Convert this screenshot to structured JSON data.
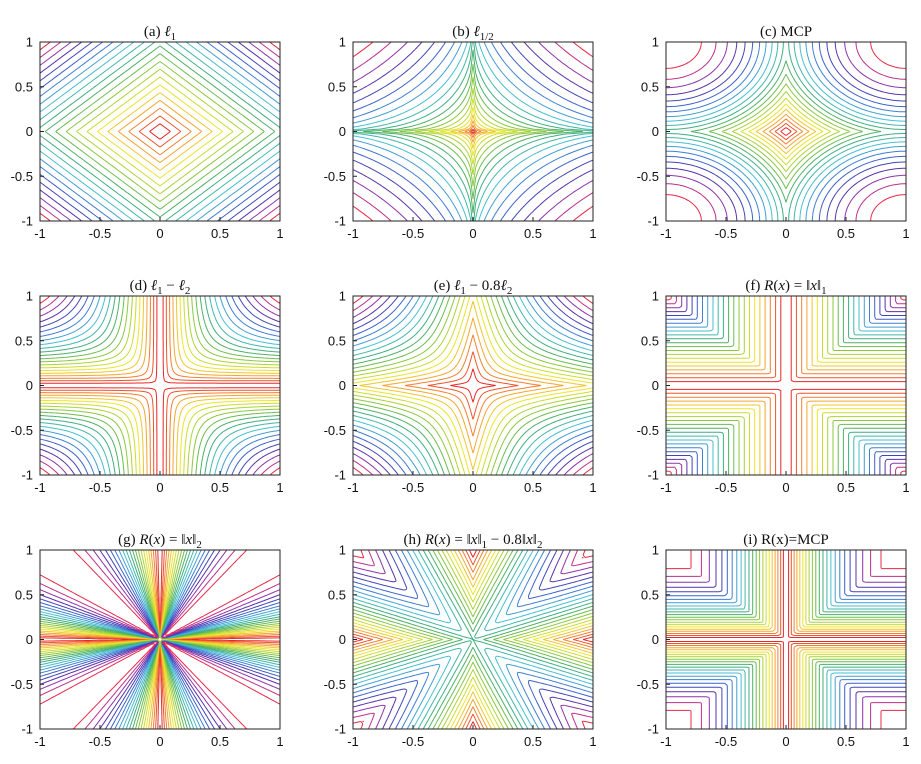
{
  "chart_data": [
    {
      "type": "contour",
      "title": "(a) ℓ1",
      "kind": "l1",
      "xlim": [
        -1,
        1
      ],
      "ylim": [
        -1,
        1
      ],
      "x_ticks": [
        "-1",
        "-0.5",
        "0",
        "0.5",
        "1"
      ],
      "y_ticks": [
        "1",
        "0.5",
        "0",
        "-0.5",
        "-1"
      ]
    },
    {
      "type": "contour",
      "title": "(b) ℓ1/2",
      "kind": "lhalf",
      "xlim": [
        -1,
        1
      ],
      "ylim": [
        -1,
        1
      ],
      "x_ticks": [
        "-1",
        "-0.5",
        "0",
        "0.5",
        "1"
      ],
      "y_ticks": [
        "1",
        "0.5",
        "0",
        "-0.5",
        "-1"
      ]
    },
    {
      "type": "contour",
      "title": "(c) MCP",
      "kind": "mcp",
      "xlim": [
        -1,
        1
      ],
      "ylim": [
        -1,
        1
      ],
      "x_ticks": [
        "-1",
        "-0.5",
        "0",
        "0.5",
        "1"
      ],
      "y_ticks": [
        "1",
        "0.5",
        "0",
        "-0.5",
        "-1"
      ]
    },
    {
      "type": "contour",
      "title": "(d) ℓ1 − ℓ2",
      "kind": "l1ml2",
      "xlim": [
        -1,
        1
      ],
      "ylim": [
        -1,
        1
      ],
      "x_ticks": [
        "-1",
        "-0.5",
        "0",
        "0.5",
        "1"
      ],
      "y_ticks": [
        "1",
        "0.5",
        "0",
        "-0.5",
        "-1"
      ]
    },
    {
      "type": "contour",
      "title": "(e) ℓ1 − 0.8ℓ2",
      "kind": "l1m08l2",
      "xlim": [
        -1,
        1
      ],
      "ylim": [
        -1,
        1
      ],
      "x_ticks": [
        "-1",
        "-0.5",
        "0",
        "0.5",
        "1"
      ],
      "y_ticks": [
        "1",
        "0.5",
        "0",
        "-0.5",
        "-1"
      ]
    },
    {
      "type": "contour",
      "title": "(f) R(x) = ‖x‖1",
      "kind": "box",
      "xlim": [
        -1,
        1
      ],
      "ylim": [
        -1,
        1
      ],
      "x_ticks": [
        "-1",
        "-0.5",
        "0",
        "0.5",
        "1"
      ],
      "y_ticks": [
        "1",
        "0.5",
        "0",
        "-0.5",
        "-1"
      ]
    },
    {
      "type": "contour",
      "title": "(g) R(x) = ‖x‖2",
      "kind": "ratio",
      "xlim": [
        -1,
        1
      ],
      "ylim": [
        -1,
        1
      ],
      "x_ticks": [
        "-1",
        "-0.5",
        "0",
        "0.5",
        "1"
      ],
      "y_ticks": [
        "1",
        "0.5",
        "0",
        "-0.5",
        "-1"
      ]
    },
    {
      "type": "contour",
      "title": "(h) R(x) = ‖x‖1 − 0.8‖x‖2",
      "kind": "cross",
      "xlim": [
        -1,
        1
      ],
      "ylim": [
        -1,
        1
      ],
      "x_ticks": [
        "-1",
        "-0.5",
        "0",
        "0.5",
        "1"
      ],
      "y_ticks": [
        "1",
        "0.5",
        "0",
        "-0.5",
        "-1"
      ]
    },
    {
      "type": "contour",
      "title": "(i) R(x)=MCP",
      "kind": "boxmcp",
      "xlim": [
        -1,
        1
      ],
      "ylim": [
        -1,
        1
      ],
      "x_ticks": [
        "-1",
        "-0.5",
        "0",
        "0.5",
        "1"
      ],
      "y_ticks": [
        "1",
        "0.5",
        "0",
        "-0.5",
        "-1"
      ]
    }
  ]
}
